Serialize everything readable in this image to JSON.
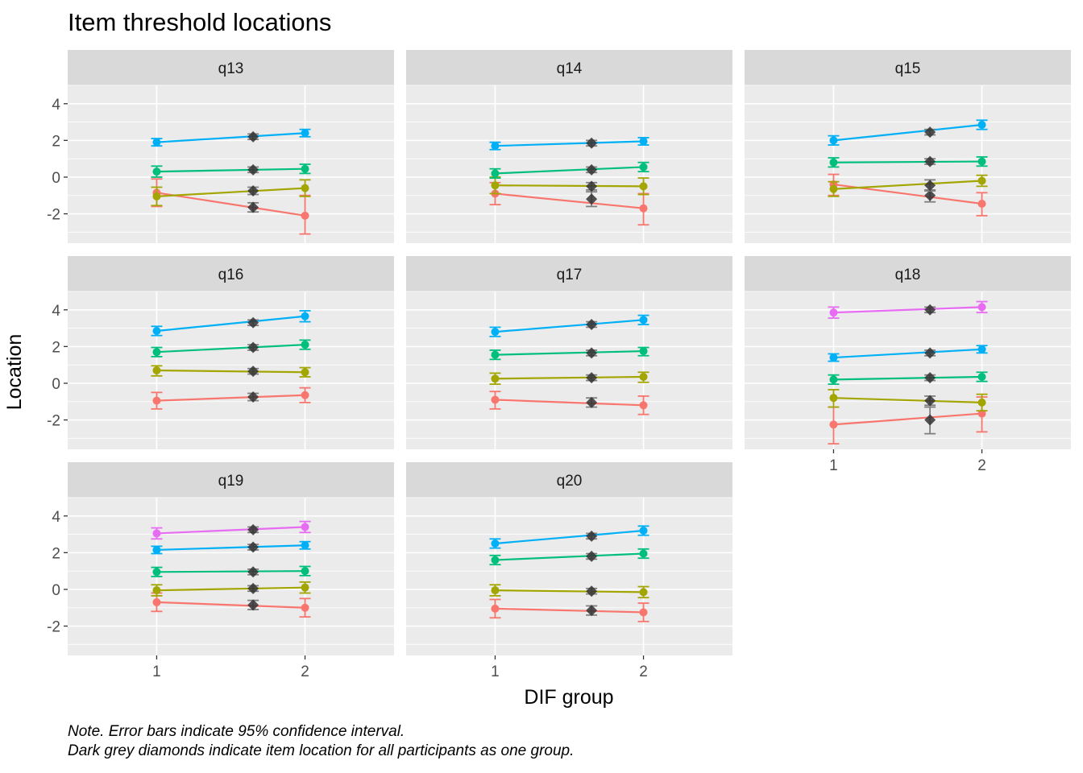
{
  "chart_data": {
    "type": "line",
    "title": "Item threshold locations",
    "xlabel": "DIF group",
    "ylabel": "Location",
    "x": [
      1,
      2
    ],
    "x_overall": 1.65,
    "xlim": [
      0.4,
      2.6
    ],
    "ylim": [
      -3.6,
      5.0
    ],
    "y_ticks": [
      4,
      2,
      0,
      -2
    ],
    "x_ticks": [
      "1",
      "2"
    ],
    "grid": true,
    "notes": [
      "Note. Error bars indicate 95% confidence interval.",
      "Dark grey diamonds indicate item location for all participants as one group."
    ],
    "series_colors": [
      "#F8766D",
      "#A3A500",
      "#00BF7D",
      "#00B0F6",
      "#E76BF3"
    ],
    "overall_color": "#333333",
    "panels": [
      {
        "name": "q13",
        "thresholds": [
          {
            "values": [
              -0.85,
              -2.1
            ],
            "ci": [
              [
                -1.6,
                -0.1
              ],
              [
                -3.1,
                -1.0
              ]
            ],
            "overall": -1.65,
            "overall_ci": [
              -1.9,
              -1.4
            ]
          },
          {
            "values": [
              -1.05,
              -0.6
            ],
            "ci": [
              [
                -1.55,
                -0.55
              ],
              [
                -1.05,
                -0.15
              ]
            ],
            "overall": -0.75,
            "overall_ci": [
              -0.95,
              -0.55
            ]
          },
          {
            "values": [
              0.3,
              0.45
            ],
            "ci": [
              [
                0.0,
                0.6
              ],
              [
                0.2,
                0.7
              ]
            ],
            "overall": 0.4,
            "overall_ci": [
              0.25,
              0.55
            ]
          },
          {
            "values": [
              1.9,
              2.4
            ],
            "ci": [
              [
                1.7,
                2.1
              ],
              [
                2.2,
                2.6
              ]
            ],
            "overall": 2.2,
            "overall_ci": [
              2.05,
              2.35
            ]
          }
        ]
      },
      {
        "name": "q14",
        "thresholds": [
          {
            "values": [
              -0.9,
              -1.7
            ],
            "ci": [
              [
                -1.5,
                -0.3
              ],
              [
                -2.6,
                -0.9
              ]
            ],
            "overall": -1.2,
            "overall_ci": [
              -1.6,
              -0.8
            ]
          },
          {
            "values": [
              -0.45,
              -0.5
            ],
            "ci": [
              [
                -0.9,
                0.0
              ],
              [
                -0.95,
                -0.05
              ]
            ],
            "overall": -0.5,
            "overall_ci": [
              -0.7,
              -0.3
            ]
          },
          {
            "values": [
              0.2,
              0.55
            ],
            "ci": [
              [
                -0.05,
                0.45
              ],
              [
                0.3,
                0.8
              ]
            ],
            "overall": 0.4,
            "overall_ci": [
              0.25,
              0.55
            ]
          },
          {
            "values": [
              1.7,
              1.95
            ],
            "ci": [
              [
                1.5,
                1.9
              ],
              [
                1.75,
                2.15
              ]
            ],
            "overall": 1.85,
            "overall_ci": [
              1.7,
              2.0
            ]
          }
        ]
      },
      {
        "name": "q15",
        "thresholds": [
          {
            "values": [
              -0.4,
              -1.45
            ],
            "ci": [
              [
                -1.0,
                0.15
              ],
              [
                -2.1,
                -0.85
              ]
            ],
            "overall": -1.0,
            "overall_ci": [
              -1.35,
              -0.7
            ]
          },
          {
            "values": [
              -0.65,
              -0.2
            ],
            "ci": [
              [
                -1.05,
                -0.25
              ],
              [
                -0.5,
                0.1
              ]
            ],
            "overall": -0.45,
            "overall_ci": [
              -0.75,
              -0.15
            ]
          },
          {
            "values": [
              0.8,
              0.85
            ],
            "ci": [
              [
                0.55,
                1.05
              ],
              [
                0.6,
                1.1
              ]
            ],
            "overall": 0.85,
            "overall_ci": [
              0.7,
              1.0
            ]
          },
          {
            "values": [
              2.0,
              2.85
            ],
            "ci": [
              [
                1.75,
                2.25
              ],
              [
                2.6,
                3.1
              ]
            ],
            "overall": 2.45,
            "overall_ci": [
              2.3,
              2.6
            ]
          }
        ]
      },
      {
        "name": "q16",
        "thresholds": [
          {
            "values": [
              -0.95,
              -0.65
            ],
            "ci": [
              [
                -1.4,
                -0.5
              ],
              [
                -1.05,
                -0.25
              ]
            ],
            "overall": -0.75,
            "overall_ci": [
              -0.95,
              -0.55
            ]
          },
          {
            "values": [
              0.7,
              0.6
            ],
            "ci": [
              [
                0.4,
                0.95
              ],
              [
                0.35,
                0.85
              ]
            ],
            "overall": 0.65,
            "overall_ci": [
              0.5,
              0.8
            ]
          },
          {
            "values": [
              1.7,
              2.1
            ],
            "ci": [
              [
                1.45,
                1.95
              ],
              [
                1.85,
                2.35
              ]
            ],
            "overall": 1.95,
            "overall_ci": [
              1.8,
              2.1
            ]
          },
          {
            "values": [
              2.85,
              3.65
            ],
            "ci": [
              [
                2.6,
                3.1
              ],
              [
                3.35,
                3.95
              ]
            ],
            "overall": 3.3,
            "overall_ci": [
              3.15,
              3.45
            ]
          }
        ]
      },
      {
        "name": "q17",
        "thresholds": [
          {
            "values": [
              -0.9,
              -1.2
            ],
            "ci": [
              [
                -1.4,
                -0.45
              ],
              [
                -1.7,
                -0.7
              ]
            ],
            "overall": -1.05,
            "overall_ci": [
              -1.3,
              -0.8
            ]
          },
          {
            "values": [
              0.25,
              0.35
            ],
            "ci": [
              [
                -0.05,
                0.55
              ],
              [
                0.05,
                0.6
              ]
            ],
            "overall": 0.3,
            "overall_ci": [
              0.15,
              0.45
            ]
          },
          {
            "values": [
              1.55,
              1.75
            ],
            "ci": [
              [
                1.3,
                1.8
              ],
              [
                1.5,
                1.95
              ]
            ],
            "overall": 1.65,
            "overall_ci": [
              1.5,
              1.8
            ]
          },
          {
            "values": [
              2.8,
              3.45
            ],
            "ci": [
              [
                2.55,
                3.05
              ],
              [
                3.2,
                3.7
              ]
            ],
            "overall": 3.2,
            "overall_ci": [
              3.05,
              3.35
            ]
          }
        ]
      },
      {
        "name": "q18",
        "thresholds": [
          {
            "values": [
              -2.25,
              -1.65
            ],
            "ci": [
              [
                -3.3,
                -1.3
              ],
              [
                -2.65,
                -0.75
              ]
            ],
            "overall": -2.0,
            "overall_ci": [
              -2.75,
              -1.3
            ]
          },
          {
            "values": [
              -0.8,
              -1.05
            ],
            "ci": [
              [
                -1.3,
                -0.35
              ],
              [
                -1.5,
                -0.6
              ]
            ],
            "overall": -0.95,
            "overall_ci": [
              -1.2,
              -0.7
            ]
          },
          {
            "values": [
              0.2,
              0.35
            ],
            "ci": [
              [
                -0.05,
                0.45
              ],
              [
                0.1,
                0.6
              ]
            ],
            "overall": 0.3,
            "overall_ci": [
              0.15,
              0.45
            ]
          },
          {
            "values": [
              1.4,
              1.85
            ],
            "ci": [
              [
                1.2,
                1.6
              ],
              [
                1.65,
                2.05
              ]
            ],
            "overall": 1.65,
            "overall_ci": [
              1.5,
              1.8
            ]
          },
          {
            "values": [
              3.85,
              4.15
            ],
            "ci": [
              [
                3.55,
                4.15
              ],
              [
                3.85,
                4.45
              ]
            ],
            "overall": 4.0,
            "overall_ci": [
              3.85,
              4.15
            ]
          }
        ]
      },
      {
        "name": "q19",
        "thresholds": [
          {
            "values": [
              -0.7,
              -1.0
            ],
            "ci": [
              [
                -1.2,
                -0.2
              ],
              [
                -1.5,
                -0.5
              ]
            ],
            "overall": -0.85,
            "overall_ci": [
              -1.1,
              -0.6
            ]
          },
          {
            "values": [
              -0.05,
              0.1
            ],
            "ci": [
              [
                -0.35,
                0.25
              ],
              [
                -0.2,
                0.4
              ]
            ],
            "overall": 0.05,
            "overall_ci": [
              -0.1,
              0.2
            ]
          },
          {
            "values": [
              0.95,
              1.0
            ],
            "ci": [
              [
                0.7,
                1.2
              ],
              [
                0.75,
                1.25
              ]
            ],
            "overall": 0.95,
            "overall_ci": [
              0.8,
              1.1
            ]
          },
          {
            "values": [
              2.15,
              2.4
            ],
            "ci": [
              [
                1.95,
                2.35
              ],
              [
                2.2,
                2.6
              ]
            ],
            "overall": 2.3,
            "overall_ci": [
              2.15,
              2.45
            ]
          },
          {
            "values": [
              3.05,
              3.4
            ],
            "ci": [
              [
                2.75,
                3.35
              ],
              [
                3.1,
                3.7
              ]
            ],
            "overall": 3.25,
            "overall_ci": [
              3.1,
              3.4
            ]
          }
        ]
      },
      {
        "name": "q20",
        "thresholds": [
          {
            "values": [
              -1.05,
              -1.25
            ],
            "ci": [
              [
                -1.55,
                -0.55
              ],
              [
                -1.75,
                -0.75
              ]
            ],
            "overall": -1.15,
            "overall_ci": [
              -1.4,
              -0.9
            ]
          },
          {
            "values": [
              -0.05,
              -0.15
            ],
            "ci": [
              [
                -0.35,
                0.25
              ],
              [
                -0.45,
                0.15
              ]
            ],
            "overall": -0.1,
            "overall_ci": [
              -0.25,
              0.05
            ]
          },
          {
            "values": [
              1.6,
              1.95
            ],
            "ci": [
              [
                1.35,
                1.85
              ],
              [
                1.7,
                2.2
              ]
            ],
            "overall": 1.8,
            "overall_ci": [
              1.65,
              1.95
            ]
          },
          {
            "values": [
              2.5,
              3.2
            ],
            "ci": [
              [
                2.25,
                2.75
              ],
              [
                2.95,
                3.45
              ]
            ],
            "overall": 2.9,
            "overall_ci": [
              2.75,
              3.05
            ]
          }
        ]
      }
    ]
  }
}
